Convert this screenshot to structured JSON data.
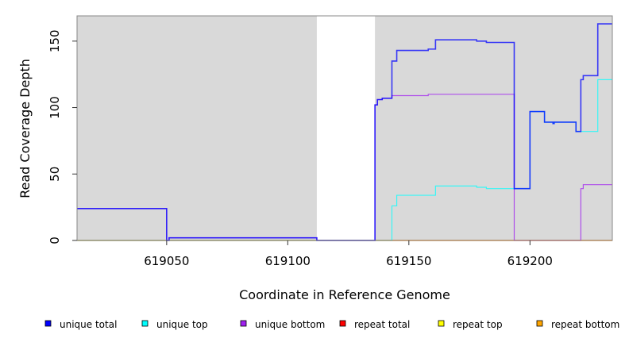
{
  "chart_data": {
    "type": "line",
    "step": true,
    "title": "",
    "xlabel": "Coordinate in Reference Genome",
    "ylabel": "Read Coverage Depth",
    "xlim": [
      619013,
      619234
    ],
    "ylim": [
      0,
      169
    ],
    "x_ticks": [
      619050,
      619100,
      619150,
      619200
    ],
    "y_ticks": [
      0,
      50,
      100,
      150
    ],
    "shaded_ranges": [
      [
        619013,
        619112
      ],
      [
        619136,
        619234
      ]
    ],
    "shade_color": "#d9d9d9",
    "legend_position": "bottom",
    "series": [
      {
        "name": "unique total",
        "color": "#0000ff",
        "steps": [
          [
            619013,
            24
          ],
          [
            619050,
            0
          ],
          [
            619051,
            2
          ],
          [
            619112,
            0
          ],
          [
            619136,
            102
          ],
          [
            619137,
            106
          ],
          [
            619139,
            107
          ],
          [
            619143,
            135
          ],
          [
            619145,
            143
          ],
          [
            619158,
            144
          ],
          [
            619161,
            151
          ],
          [
            619178,
            150
          ],
          [
            619182,
            149
          ],
          [
            619193.5,
            39
          ],
          [
            619200,
            97
          ],
          [
            619206,
            89
          ],
          [
            619209.5,
            88
          ],
          [
            619210,
            89
          ],
          [
            619219,
            82
          ],
          [
            619221,
            121
          ],
          [
            619222,
            124
          ],
          [
            619228,
            163
          ]
        ]
      },
      {
        "name": "unique top",
        "color": "#00ffff",
        "steps": [
          [
            619013,
            0
          ],
          [
            619143,
            26
          ],
          [
            619145,
            34
          ],
          [
            619161,
            41
          ],
          [
            619178,
            40
          ],
          [
            619182,
            39
          ],
          [
            619200,
            97
          ],
          [
            619206,
            89
          ],
          [
            619209.5,
            88
          ],
          [
            619210,
            89
          ],
          [
            619219,
            82
          ],
          [
            619228,
            121
          ]
        ]
      },
      {
        "name": "unique bottom",
        "color": "#a020f0",
        "steps": [
          [
            619013,
            24
          ],
          [
            619050,
            0
          ],
          [
            619051,
            2
          ],
          [
            619112,
            0
          ],
          [
            619136,
            102
          ],
          [
            619137,
            106
          ],
          [
            619139,
            107
          ],
          [
            619143,
            109
          ],
          [
            619158,
            110
          ],
          [
            619193.5,
            0
          ],
          [
            619221,
            39
          ],
          [
            619222,
            42
          ]
        ]
      },
      {
        "name": "repeat total",
        "color": "#ff0000",
        "steps": [
          [
            619013,
            0
          ]
        ]
      },
      {
        "name": "repeat top",
        "color": "#ffff00",
        "steps": [
          [
            619013,
            0
          ]
        ]
      },
      {
        "name": "repeat bottom",
        "color": "#ffa500",
        "steps": [
          [
            619013,
            0
          ]
        ]
      }
    ]
  }
}
